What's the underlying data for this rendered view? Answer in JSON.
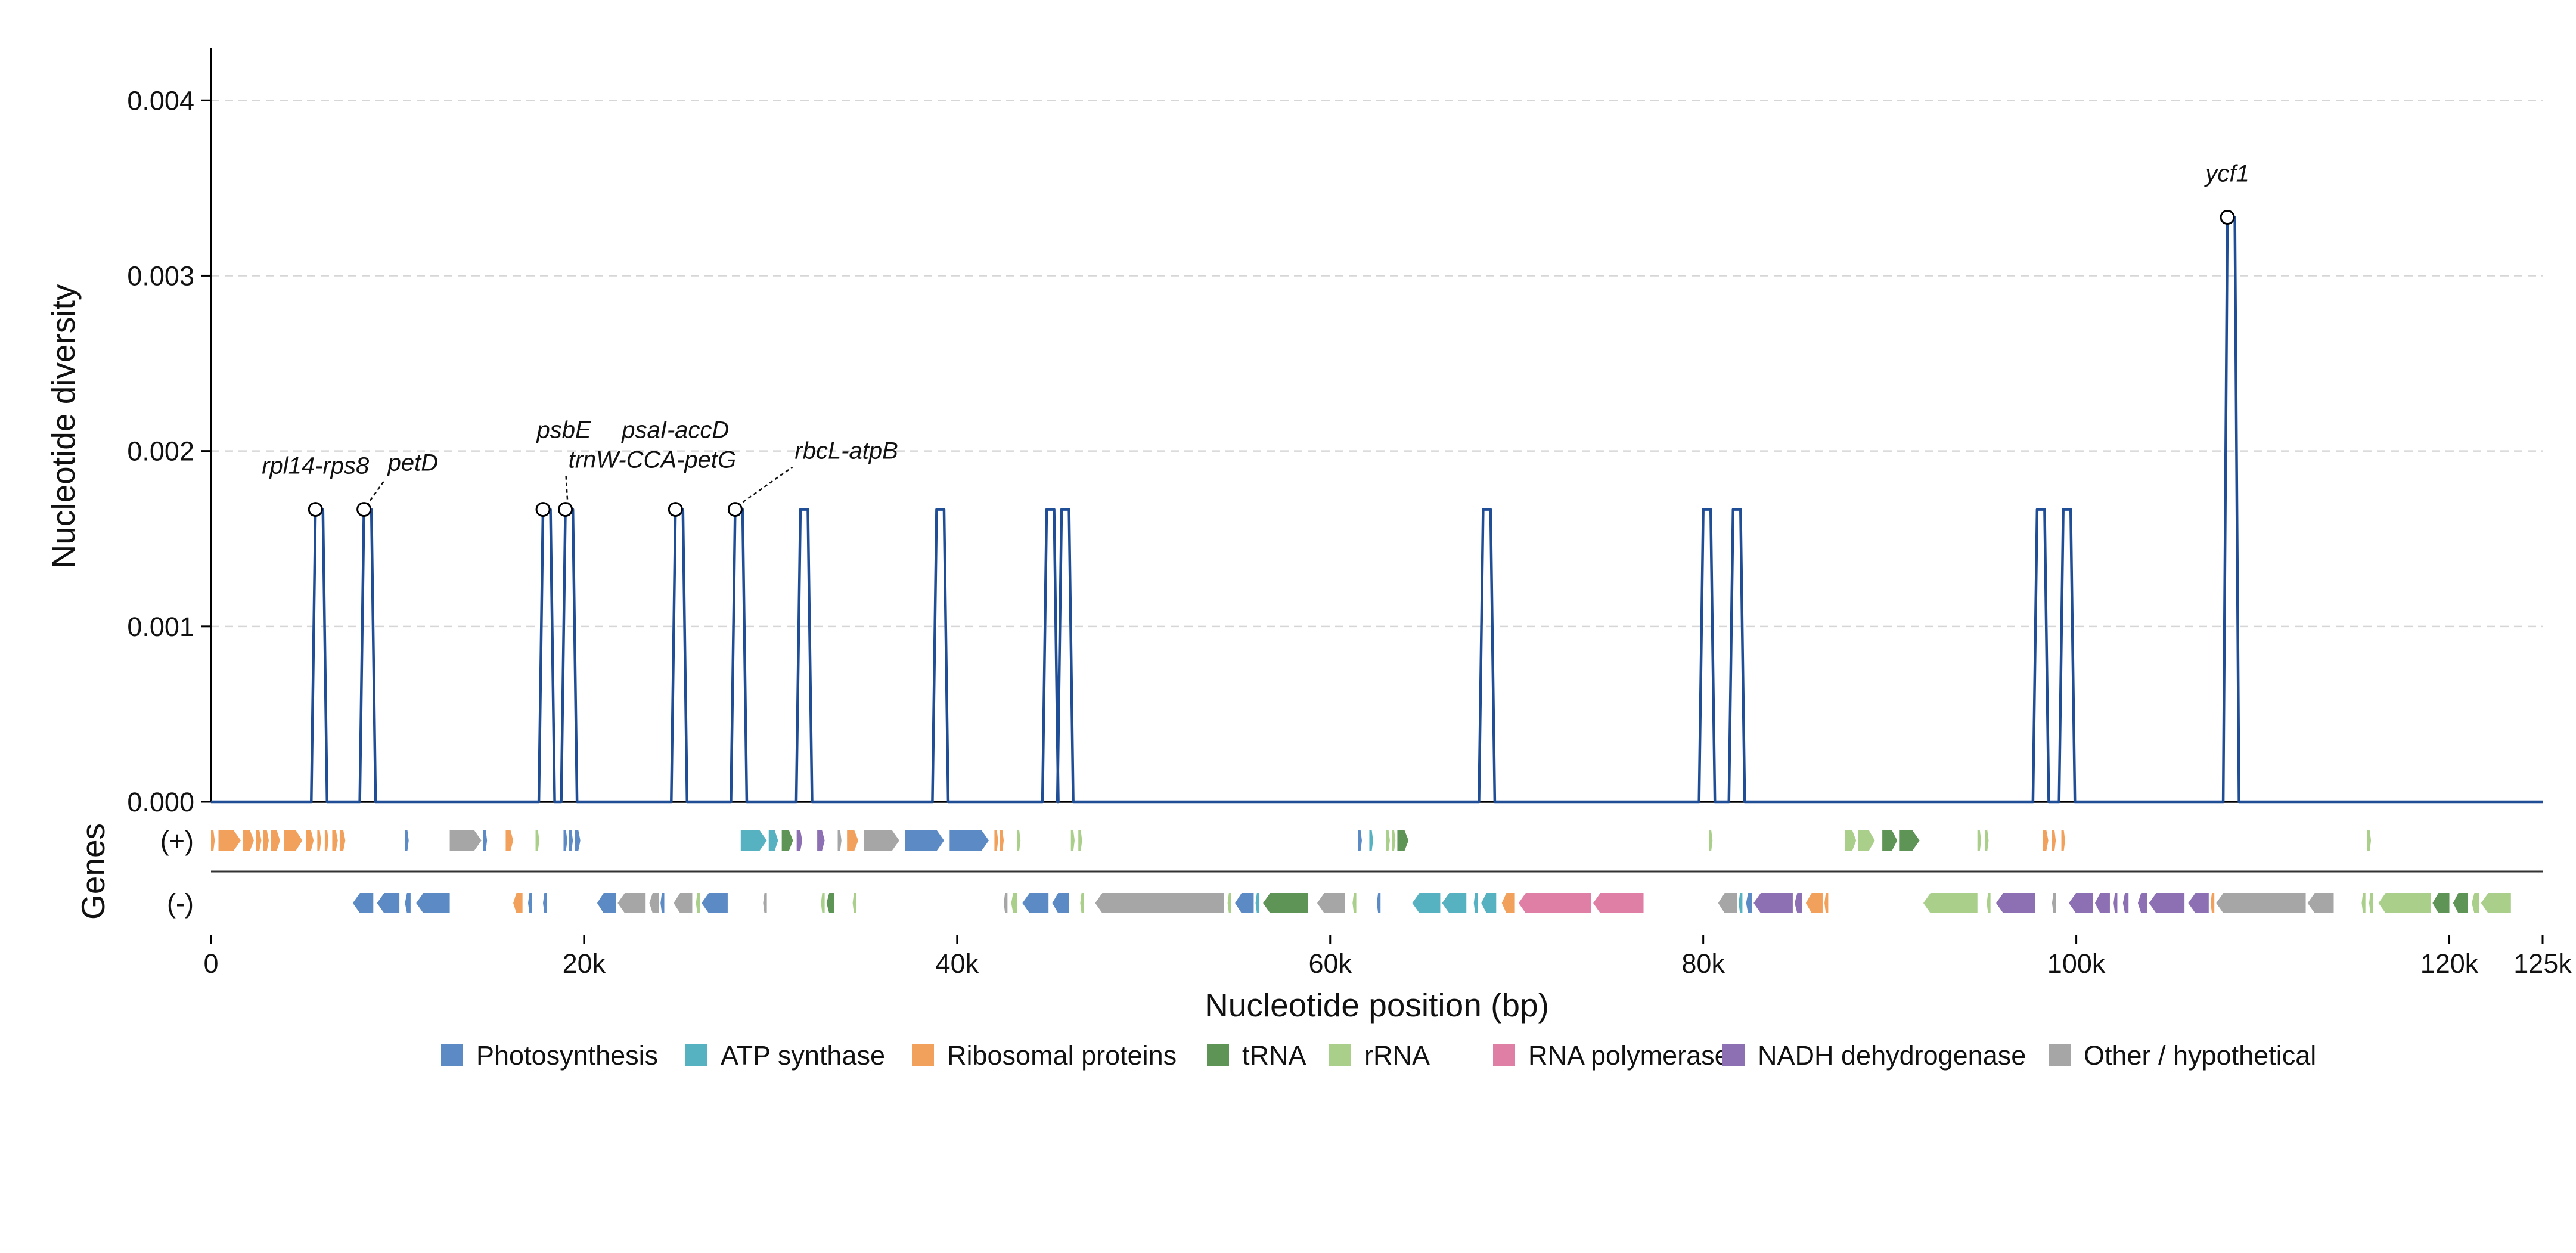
{
  "chart_data": {
    "type": "line",
    "xlabel": "Nucleotide position (bp)",
    "ylabel": "Nucleotide diversity",
    "gene_track_label": "Genes",
    "xlim": [
      0,
      125000
    ],
    "ylim": [
      0,
      0.0043
    ],
    "x_ticks": [
      0,
      20000,
      40000,
      60000,
      80000,
      100000,
      120000,
      125000
    ],
    "x_tick_labels": [
      "0",
      "20k",
      "40k",
      "60k",
      "80k",
      "100k",
      "120k",
      "125k"
    ],
    "y_ticks": [
      0,
      0.001,
      0.002,
      0.003,
      0.004
    ],
    "y_tick_labels": [
      "0.000",
      "0.001",
      "0.002",
      "0.003",
      "0.004"
    ],
    "grid": "horizontal dashed",
    "line_color": "#1f4e96",
    "peaks": [
      {
        "start": 5600,
        "end": 6000,
        "value": 0.001667
      },
      {
        "start": 8200,
        "end": 8600,
        "value": 0.001667
      },
      {
        "start": 17800,
        "end": 18200,
        "value": 0.001667
      },
      {
        "start": 19000,
        "end": 19400,
        "value": 0.001667
      },
      {
        "start": 24900,
        "end": 25300,
        "value": 0.001667
      },
      {
        "start": 28100,
        "end": 28500,
        "value": 0.001667
      },
      {
        "start": 31600,
        "end": 32000,
        "value": 0.001667
      },
      {
        "start": 38900,
        "end": 39300,
        "value": 0.001667
      },
      {
        "start": 44800,
        "end": 45200,
        "value": 0.001667
      },
      {
        "start": 45600,
        "end": 46000,
        "value": 0.001667
      },
      {
        "start": 68200,
        "end": 68600,
        "value": 0.001667
      },
      {
        "start": 80000,
        "end": 80400,
        "value": 0.001667
      },
      {
        "start": 81600,
        "end": 82000,
        "value": 0.001667
      },
      {
        "start": 97900,
        "end": 98300,
        "value": 0.001667
      },
      {
        "start": 99300,
        "end": 99700,
        "value": 0.001667
      },
      {
        "start": 108100,
        "end": 108500,
        "value": 0.003333
      }
    ],
    "annotations": [
      {
        "label": "rpl14-rps8",
        "x": 5600,
        "y": 0.001667
      },
      {
        "label": "petD",
        "x": 8200,
        "y": 0.001667
      },
      {
        "label": "psbE",
        "x": 17800,
        "y": 0.001667
      },
      {
        "label": "trnW-CCA-petG",
        "x": 19000,
        "y": 0.001667
      },
      {
        "label": "psaI-accD",
        "x": 24900,
        "y": 0.001667
      },
      {
        "label": "rbcL-atpB",
        "x": 28100,
        "y": 0.001667
      },
      {
        "label": "ycf1",
        "x": 108100,
        "y": 0.003333
      }
    ],
    "strands": [
      {
        "label": "(+)",
        "key": "plus"
      },
      {
        "label": "(-)",
        "key": "minus"
      }
    ],
    "gene_categories": [
      {
        "name": "Photosynthesis",
        "color": "#5b8ac4"
      },
      {
        "name": "ATP synthase",
        "color": "#56b1c1"
      },
      {
        "name": "Ribosomal proteins",
        "color": "#f2a15c"
      },
      {
        "name": "tRNA",
        "color": "#5e9455"
      },
      {
        "name": "rRNA",
        "color": "#a9cf8a"
      },
      {
        "name": "RNA polymerase",
        "color": "#e07fa6"
      },
      {
        "name": "NADH dehydrogenase",
        "color": "#8d70b4"
      },
      {
        "name": "Other / hypothetical",
        "color": "#a6a6a6"
      }
    ],
    "genes_plus": [
      {
        "start": 0,
        "end": 200,
        "cat": 2
      },
      {
        "start": 400,
        "end": 1600,
        "cat": 2
      },
      {
        "start": 1700,
        "end": 2300,
        "cat": 2
      },
      {
        "start": 2400,
        "end": 2700,
        "cat": 2
      },
      {
        "start": 2800,
        "end": 3100,
        "cat": 2
      },
      {
        "start": 3200,
        "end": 3700,
        "cat": 2
      },
      {
        "start": 3900,
        "end": 4900,
        "cat": 2
      },
      {
        "start": 5100,
        "end": 5500,
        "cat": 2
      },
      {
        "start": 5700,
        "end": 5900,
        "cat": 2
      },
      {
        "start": 6100,
        "end": 6300,
        "cat": 2
      },
      {
        "start": 6500,
        "end": 6800,
        "cat": 2
      },
      {
        "start": 6900,
        "end": 7200,
        "cat": 2
      },
      {
        "start": 10400,
        "end": 10600,
        "cat": 0
      },
      {
        "start": 12800,
        "end": 14500,
        "cat": 7
      },
      {
        "start": 14600,
        "end": 14800,
        "cat": 0
      },
      {
        "start": 15800,
        "end": 16200,
        "cat": 2
      },
      {
        "start": 17400,
        "end": 17600,
        "cat": 4
      },
      {
        "start": 18900,
        "end": 19100,
        "cat": 0
      },
      {
        "start": 19200,
        "end": 19400,
        "cat": 0
      },
      {
        "start": 19500,
        "end": 19800,
        "cat": 0
      },
      {
        "start": 28400,
        "end": 29800,
        "cat": 1
      },
      {
        "start": 29900,
        "end": 30400,
        "cat": 1
      },
      {
        "start": 30600,
        "end": 31200,
        "cat": 3
      },
      {
        "start": 31400,
        "end": 31700,
        "cat": 6
      },
      {
        "start": 32500,
        "end": 32900,
        "cat": 6
      },
      {
        "start": 33600,
        "end": 33800,
        "cat": 7
      },
      {
        "start": 34100,
        "end": 34700,
        "cat": 2
      },
      {
        "start": 35000,
        "end": 36900,
        "cat": 7
      },
      {
        "start": 37200,
        "end": 39300,
        "cat": 0
      },
      {
        "start": 39600,
        "end": 41700,
        "cat": 0
      },
      {
        "start": 42000,
        "end": 42200,
        "cat": 2
      },
      {
        "start": 42300,
        "end": 42500,
        "cat": 2
      },
      {
        "start": 43200,
        "end": 43400,
        "cat": 4
      },
      {
        "start": 46100,
        "end": 46300,
        "cat": 4
      },
      {
        "start": 46500,
        "end": 46700,
        "cat": 4
      },
      {
        "start": 61500,
        "end": 61700,
        "cat": 0
      },
      {
        "start": 62100,
        "end": 62300,
        "cat": 1
      },
      {
        "start": 63000,
        "end": 63200,
        "cat": 4
      },
      {
        "start": 63300,
        "end": 63500,
        "cat": 4
      },
      {
        "start": 63600,
        "end": 64200,
        "cat": 3
      },
      {
        "start": 80300,
        "end": 80500,
        "cat": 4
      },
      {
        "start": 87600,
        "end": 88200,
        "cat": 4
      },
      {
        "start": 88300,
        "end": 89200,
        "cat": 4
      },
      {
        "start": 89600,
        "end": 90400,
        "cat": 3
      },
      {
        "start": 90500,
        "end": 91600,
        "cat": 3
      },
      {
        "start": 94700,
        "end": 94900,
        "cat": 4
      },
      {
        "start": 95100,
        "end": 95300,
        "cat": 4
      },
      {
        "start": 98200,
        "end": 98500,
        "cat": 2
      },
      {
        "start": 98700,
        "end": 98900,
        "cat": 2
      },
      {
        "start": 99200,
        "end": 99400,
        "cat": 2
      },
      {
        "start": 115600,
        "end": 115800,
        "cat": 4
      }
    ],
    "genes_minus": [
      {
        "start": 7600,
        "end": 8700,
        "cat": 0
      },
      {
        "start": 8900,
        "end": 10100,
        "cat": 0
      },
      {
        "start": 10400,
        "end": 10700,
        "cat": 0
      },
      {
        "start": 11000,
        "end": 12800,
        "cat": 0
      },
      {
        "start": 16200,
        "end": 16700,
        "cat": 2
      },
      {
        "start": 17000,
        "end": 17200,
        "cat": 0
      },
      {
        "start": 17800,
        "end": 18000,
        "cat": 0
      },
      {
        "start": 20700,
        "end": 21700,
        "cat": 0
      },
      {
        "start": 21800,
        "end": 23300,
        "cat": 7
      },
      {
        "start": 23500,
        "end": 24000,
        "cat": 7
      },
      {
        "start": 24100,
        "end": 24300,
        "cat": 0
      },
      {
        "start": 24800,
        "end": 25800,
        "cat": 7
      },
      {
        "start": 26000,
        "end": 26200,
        "cat": 4
      },
      {
        "start": 26300,
        "end": 27700,
        "cat": 0
      },
      {
        "start": 29600,
        "end": 29800,
        "cat": 7
      },
      {
        "start": 32700,
        "end": 32900,
        "cat": 4
      },
      {
        "start": 33000,
        "end": 33400,
        "cat": 3
      },
      {
        "start": 34400,
        "end": 34600,
        "cat": 4
      },
      {
        "start": 42500,
        "end": 42700,
        "cat": 7
      },
      {
        "start": 42900,
        "end": 43200,
        "cat": 4
      },
      {
        "start": 43500,
        "end": 44900,
        "cat": 0
      },
      {
        "start": 45100,
        "end": 46000,
        "cat": 0
      },
      {
        "start": 46600,
        "end": 46800,
        "cat": 4
      },
      {
        "start": 47400,
        "end": 54300,
        "cat": 7
      },
      {
        "start": 54500,
        "end": 54700,
        "cat": 4
      },
      {
        "start": 54900,
        "end": 55900,
        "cat": 0
      },
      {
        "start": 56000,
        "end": 56200,
        "cat": 1
      },
      {
        "start": 56400,
        "end": 58800,
        "cat": 3
      },
      {
        "start": 59300,
        "end": 60800,
        "cat": 7
      },
      {
        "start": 61200,
        "end": 61400,
        "cat": 4
      },
      {
        "start": 62500,
        "end": 62700,
        "cat": 0
      },
      {
        "start": 64400,
        "end": 65900,
        "cat": 1
      },
      {
        "start": 66000,
        "end": 67300,
        "cat": 1
      },
      {
        "start": 67700,
        "end": 67900,
        "cat": 1
      },
      {
        "start": 68100,
        "end": 68900,
        "cat": 1
      },
      {
        "start": 69200,
        "end": 69900,
        "cat": 2
      },
      {
        "start": 70100,
        "end": 74000,
        "cat": 5
      },
      {
        "start": 74100,
        "end": 76800,
        "cat": 5
      },
      {
        "start": 80800,
        "end": 81800,
        "cat": 7
      },
      {
        "start": 81900,
        "end": 82100,
        "cat": 1
      },
      {
        "start": 82300,
        "end": 82600,
        "cat": 0
      },
      {
        "start": 82700,
        "end": 84800,
        "cat": 6
      },
      {
        "start": 84900,
        "end": 85300,
        "cat": 6
      },
      {
        "start": 85500,
        "end": 86400,
        "cat": 2
      },
      {
        "start": 86500,
        "end": 86700,
        "cat": 2
      },
      {
        "start": 91800,
        "end": 94700,
        "cat": 4
      },
      {
        "start": 95200,
        "end": 95400,
        "cat": 4
      },
      {
        "start": 95700,
        "end": 97800,
        "cat": 6
      },
      {
        "start": 98700,
        "end": 98900,
        "cat": 7
      },
      {
        "start": 99600,
        "end": 100900,
        "cat": 6
      },
      {
        "start": 101000,
        "end": 101800,
        "cat": 6
      },
      {
        "start": 102000,
        "end": 102200,
        "cat": 6
      },
      {
        "start": 102500,
        "end": 102800,
        "cat": 6
      },
      {
        "start": 103300,
        "end": 103800,
        "cat": 6
      },
      {
        "start": 103900,
        "end": 105800,
        "cat": 6
      },
      {
        "start": 106000,
        "end": 107100,
        "cat": 6
      },
      {
        "start": 107200,
        "end": 107400,
        "cat": 2
      },
      {
        "start": 107500,
        "end": 112300,
        "cat": 7
      },
      {
        "start": 112400,
        "end": 113800,
        "cat": 7
      },
      {
        "start": 115300,
        "end": 115500,
        "cat": 4
      },
      {
        "start": 115700,
        "end": 115900,
        "cat": 4
      },
      {
        "start": 116200,
        "end": 119000,
        "cat": 4
      },
      {
        "start": 119100,
        "end": 120000,
        "cat": 3
      },
      {
        "start": 120200,
        "end": 121000,
        "cat": 3
      },
      {
        "start": 121200,
        "end": 121600,
        "cat": 4
      },
      {
        "start": 121700,
        "end": 123300,
        "cat": 4
      }
    ]
  }
}
